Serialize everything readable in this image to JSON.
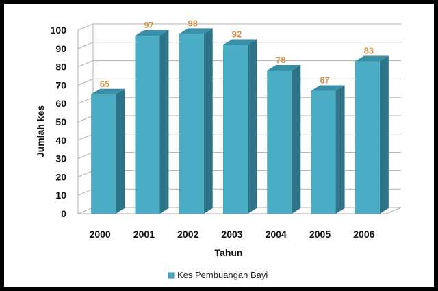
{
  "chart_data": {
    "type": "bar",
    "categories": [
      "2000",
      "2001",
      "2002",
      "2003",
      "2004",
      "2005",
      "2006"
    ],
    "series": [
      {
        "name": "Kes Pembuangan Bayi",
        "values": [
          65,
          97,
          98,
          92,
          78,
          67,
          83
        ]
      }
    ],
    "xlabel": "Tahun",
    "ylabel": "Jumlah kes",
    "ylim": [
      0,
      100
    ],
    "yticks": [
      "0",
      "10",
      "20",
      "30",
      "40",
      "50",
      "60",
      "70",
      "80",
      "90",
      "100"
    ],
    "data_labels": [
      "65",
      "97",
      "98",
      "92",
      "78",
      "67",
      "83"
    ],
    "grid": true,
    "legend_position": "bottom",
    "colors": {
      "bar_front": "#4bacc6",
      "bar_side": "#2e7489",
      "bar_top": "#3a8ea6",
      "data_label": "#d4924a",
      "grid": "#b0b0b0"
    }
  }
}
